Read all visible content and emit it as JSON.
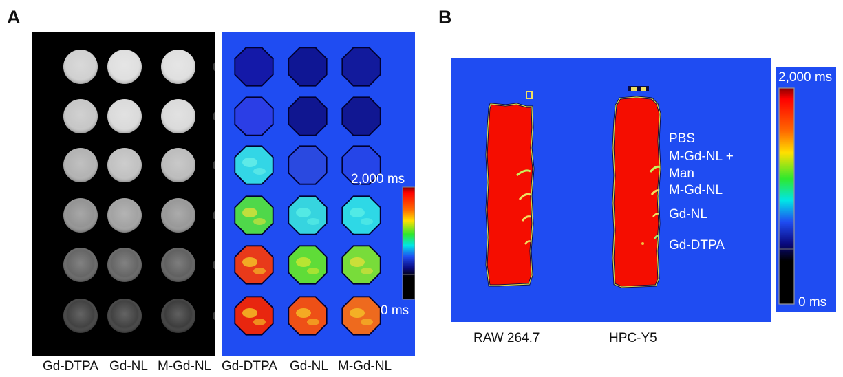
{
  "panel_a": {
    "letter": "A",
    "colorbar_max": "2,000 ms",
    "colorbar_min": "0 ms",
    "column_labels": [
      "Gd-DTPA",
      "Gd-NL",
      "M-Gd-NL",
      "Gd-DTPA",
      "Gd-NL",
      "M-Gd-NL"
    ],
    "grayscale_levels": [
      [
        0.82,
        0.88,
        0.88
      ],
      [
        0.78,
        0.86,
        0.86
      ],
      [
        0.7,
        0.76,
        0.74
      ],
      [
        0.58,
        0.64,
        0.6
      ],
      [
        0.4,
        0.4,
        0.38
      ],
      [
        0.26,
        0.26,
        0.24
      ]
    ],
    "map_fill_colors": [
      [
        "#1419a8",
        "#0f1694",
        "#121a9c"
      ],
      [
        "#2b3ee6",
        "#101690",
        "#111792"
      ],
      [
        "#33d6e6",
        "#2a49e0",
        "#2545e8"
      ],
      [
        "#4fd84a",
        "#36d4df",
        "#2ed8e6"
      ],
      [
        "#e83a1a",
        "#5fdc38",
        "#78dc3a"
      ],
      [
        "#e8260f",
        "#ee5016",
        "#ee6a1e"
      ]
    ],
    "map_accent_colors": [
      [
        "#1419a8",
        "#0f1694",
        "#121a9c"
      ],
      [
        "#2b3ee6",
        "#101690",
        "#111792"
      ],
      [
        "#6ef0e8",
        "#2a49e0",
        "#2545e8"
      ],
      [
        "#e6e23a",
        "#5ef0e6",
        "#5ef0e6"
      ],
      [
        "#f5d028",
        "#d6e830",
        "#e6e03a"
      ],
      [
        "#f5d028",
        "#f5c828",
        "#f5c828"
      ]
    ]
  },
  "panel_b": {
    "letter": "B",
    "colorbar_max": "2,000 ms",
    "colorbar_min": "0 ms",
    "tube_labels": [
      "PBS",
      "M-Gd-NL +",
      "Man",
      "M-Gd-NL",
      "Gd-NL",
      "Gd-DTPA"
    ],
    "cell_labels": [
      "RAW 264.7",
      "HPC-Y5"
    ]
  },
  "colors": {
    "map_background": "#1f4cf2",
    "tube_red": "#f50d00",
    "panel_black": "#000000"
  }
}
